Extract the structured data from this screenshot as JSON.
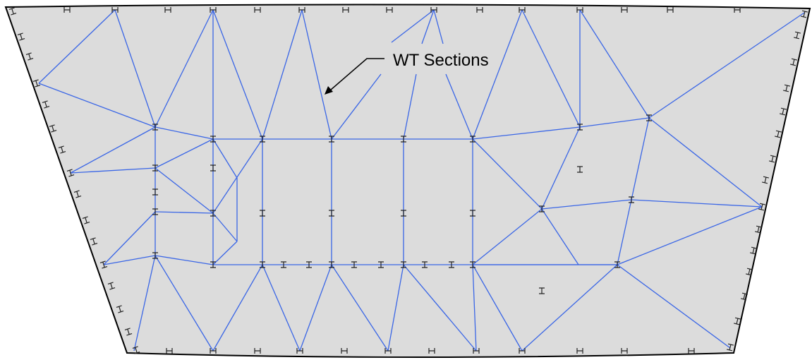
{
  "annotation": "WT Sections"
}
